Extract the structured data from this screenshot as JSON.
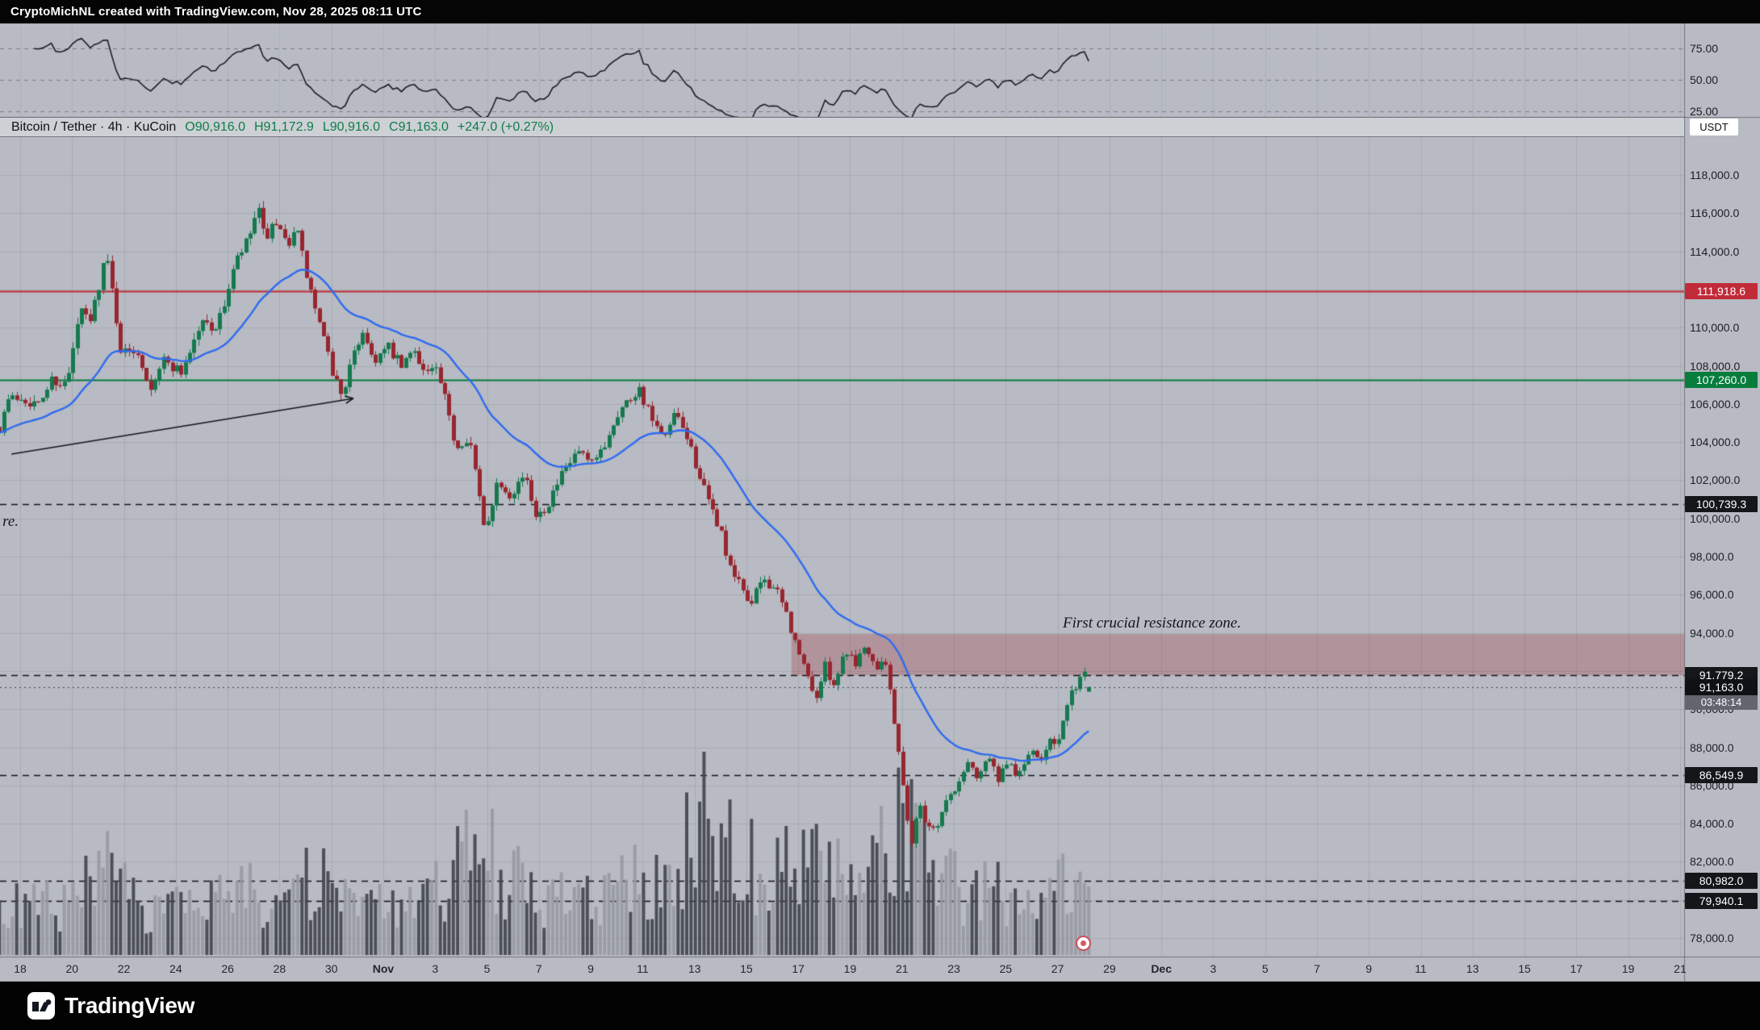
{
  "header": {
    "watermark": "CryptoMichNL created with TradingView.com, Nov 28, 2025 08:11 UTC"
  },
  "symbol_bar": {
    "title": "Bitcoin / Tether · 4h · KuCoin",
    "ohlc": {
      "open": "O90,916.0",
      "high": "H91,172.9",
      "low": "L90,916.0",
      "close": "C91,163.0",
      "change": "+247.0 (+0.27%)"
    }
  },
  "price_scale": {
    "currency_button": "USDT",
    "ticks": [
      {
        "price": 118000,
        "label": "118,000.0"
      },
      {
        "price": 116000,
        "label": "116,000.0"
      },
      {
        "price": 114000,
        "label": "114,000.0"
      },
      {
        "price": 110000,
        "label": "110,000.0"
      },
      {
        "price": 108000,
        "label": "108,000.0"
      },
      {
        "price": 106000,
        "label": "106,000.0"
      },
      {
        "price": 104000,
        "label": "104,000.0"
      },
      {
        "price": 102000,
        "label": "102,000.0"
      },
      {
        "price": 100000,
        "label": "100,000.0"
      },
      {
        "price": 98000,
        "label": "98,000.0"
      },
      {
        "price": 96000,
        "label": "96,000.0"
      },
      {
        "price": 94000,
        "label": "94,000.0"
      },
      {
        "price": 90000,
        "label": "90,000.0"
      },
      {
        "price": 88000,
        "label": "88,000.0"
      },
      {
        "price": 86000,
        "label": "86,000.0"
      },
      {
        "price": 84000,
        "label": "84,000.0"
      },
      {
        "price": 82000,
        "label": "82,000.0"
      },
      {
        "price": 78000,
        "label": "78,000.0"
      }
    ],
    "levels": [
      {
        "name": "red-resistance-line",
        "price": 111918.6,
        "label": "111,918.6",
        "color": "#c12b38",
        "style": "solid"
      },
      {
        "name": "green-support-line",
        "price": 107260.0,
        "label": "107,260.0",
        "color": "#067d3c",
        "style": "solid"
      },
      {
        "name": "dashed-level-1",
        "price": 100739.3,
        "label": "100,739.3",
        "color": "#14161a",
        "style": "dashed"
      },
      {
        "name": "zone-bottom-level",
        "price": 91779.2,
        "label": "91,779.2",
        "color": "#14161a",
        "style": "dashed"
      },
      {
        "name": "dashed-level-2",
        "price": 86549.9,
        "label": "86,549.9",
        "color": "#14161a",
        "style": "dashed"
      },
      {
        "name": "dashed-level-3",
        "price": 80982.0,
        "label": "80,982.0",
        "color": "#14161a",
        "style": "dashed"
      },
      {
        "name": "dashed-level-4",
        "price": 79940.1,
        "label": "79,940.1",
        "color": "#14161a",
        "style": "dashed"
      }
    ],
    "last_price": {
      "value": 91163.0,
      "label": "91,163.0",
      "countdown": "03:48:14"
    }
  },
  "rsi_panel": {
    "ticks": [
      {
        "value": 75,
        "label": "75.00"
      },
      {
        "value": 50,
        "label": "50.00"
      },
      {
        "value": 25,
        "label": "25.00"
      }
    ]
  },
  "x_axis": {
    "labels": [
      {
        "label": "18",
        "day": 0
      },
      {
        "label": "20",
        "day": 2
      },
      {
        "label": "22",
        "day": 4
      },
      {
        "label": "24",
        "day": 6
      },
      {
        "label": "26",
        "day": 8
      },
      {
        "label": "28",
        "day": 10
      },
      {
        "label": "30",
        "day": 12
      },
      {
        "label": "Nov",
        "day": 14,
        "month": true
      },
      {
        "label": "3",
        "day": 16
      },
      {
        "label": "5",
        "day": 18
      },
      {
        "label": "7",
        "day": 20
      },
      {
        "label": "9",
        "day": 22
      },
      {
        "label": "11",
        "day": 24
      },
      {
        "label": "13",
        "day": 26
      },
      {
        "label": "15",
        "day": 28
      },
      {
        "label": "17",
        "day": 30
      },
      {
        "label": "19",
        "day": 32
      },
      {
        "label": "21",
        "day": 34
      },
      {
        "label": "23",
        "day": 36
      },
      {
        "label": "25",
        "day": 38
      },
      {
        "label": "27",
        "day": 40
      },
      {
        "label": "29",
        "day": 42
      },
      {
        "label": "Dec",
        "day": 44,
        "month": true
      },
      {
        "label": "3",
        "day": 46
      },
      {
        "label": "5",
        "day": 48
      },
      {
        "label": "7",
        "day": 50
      },
      {
        "label": "9",
        "day": 52
      },
      {
        "label": "11",
        "day": 54
      },
      {
        "label": "13",
        "day": 56
      },
      {
        "label": "15",
        "day": 58
      },
      {
        "label": "17",
        "day": 60
      },
      {
        "label": "19",
        "day": 62
      },
      {
        "label": "21",
        "day": 64
      }
    ]
  },
  "chart_data": {
    "type": "candlestick",
    "symbol": "Bitcoin / Tether (BTC/USDT)",
    "exchange": "KuCoin",
    "interval": "4h",
    "visible_range": [
      "Oct 18",
      "Dec 21"
    ],
    "last_bar_time": "Nov 28 08:00 UTC",
    "ylim": [
      77000,
      120000
    ],
    "y_grid_step": 2000,
    "last": {
      "open": 90916.0,
      "high": 91172.9,
      "low": 90916.0,
      "close": 91163.0,
      "change": 247.0,
      "change_pct": 0.27
    },
    "price_path": [
      [
        -0.8,
        104800
      ],
      [
        -0.5,
        106200
      ],
      [
        0,
        106400
      ],
      [
        0.7,
        105900
      ],
      [
        1.2,
        107300
      ],
      [
        1.8,
        107000
      ],
      [
        2.3,
        110900
      ],
      [
        2.7,
        110300
      ],
      [
        3.3,
        113900
      ],
      [
        3.6,
        111400
      ],
      [
        3.9,
        108600
      ],
      [
        4.5,
        108900
      ],
      [
        5,
        106900
      ],
      [
        5.5,
        108300
      ],
      [
        6.2,
        107700
      ],
      [
        7,
        110300
      ],
      [
        7.6,
        110000
      ],
      [
        8.3,
        113400
      ],
      [
        8.8,
        114600
      ],
      [
        9.15,
        116300
      ],
      [
        9.4,
        114700
      ],
      [
        9.8,
        115300
      ],
      [
        10.3,
        114300
      ],
      [
        10.6,
        115500
      ],
      [
        11,
        112900
      ],
      [
        11.5,
        110300
      ],
      [
        12,
        107800
      ],
      [
        12.4,
        106500
      ],
      [
        12.8,
        108300
      ],
      [
        13.2,
        109900
      ],
      [
        13.6,
        108300
      ],
      [
        14.2,
        108900
      ],
      [
        14.7,
        107900
      ],
      [
        15.2,
        108900
      ],
      [
        15.6,
        107600
      ],
      [
        16,
        107900
      ],
      [
        16.35,
        106300
      ],
      [
        16.8,
        103700
      ],
      [
        17.3,
        104400
      ],
      [
        17.9,
        99300
      ],
      [
        18.4,
        102000
      ],
      [
        18.9,
        101300
      ],
      [
        19.4,
        102300
      ],
      [
        19.9,
        100200
      ],
      [
        20.3,
        100700
      ],
      [
        20.9,
        102300
      ],
      [
        21.5,
        103500
      ],
      [
        22,
        102700
      ],
      [
        22.5,
        103800
      ],
      [
        23,
        105500
      ],
      [
        23.5,
        106300
      ],
      [
        23.85,
        106850
      ],
      [
        24.3,
        105300
      ],
      [
        24.8,
        103950
      ],
      [
        25.2,
        105400
      ],
      [
        25.7,
        104300
      ],
      [
        26.1,
        102600
      ],
      [
        26.5,
        100900
      ],
      [
        27,
        99400
      ],
      [
        27.35,
        97300
      ],
      [
        27.8,
        96400
      ],
      [
        28.2,
        95500
      ],
      [
        28.6,
        96900
      ],
      [
        29.1,
        96300
      ],
      [
        29.5,
        95100
      ],
      [
        29.9,
        93300
      ],
      [
        30.3,
        91900
      ],
      [
        30.7,
        90600
      ],
      [
        31,
        92300
      ],
      [
        31.4,
        91300
      ],
      [
        31.8,
        93200
      ],
      [
        32.2,
        92500
      ],
      [
        32.6,
        93400
      ],
      [
        33,
        92200
      ],
      [
        33.3,
        92900
      ],
      [
        33.6,
        90400
      ],
      [
        33.9,
        87500
      ],
      [
        34.15,
        84600
      ],
      [
        34.4,
        82900
      ],
      [
        34.65,
        85200
      ],
      [
        34.9,
        84100
      ],
      [
        35.3,
        83700
      ],
      [
        35.7,
        85200
      ],
      [
        36.1,
        85800
      ],
      [
        36.5,
        87300
      ],
      [
        36.9,
        86500
      ],
      [
        37.3,
        87600
      ],
      [
        37.7,
        86300
      ],
      [
        38.1,
        87100
      ],
      [
        38.5,
        86500
      ],
      [
        38.9,
        87800
      ],
      [
        39.3,
        87200
      ],
      [
        39.7,
        88600
      ],
      [
        40,
        88200
      ],
      [
        40.4,
        90300
      ],
      [
        40.8,
        91600
      ],
      [
        41.05,
        91850
      ],
      [
        41.2,
        91000
      ],
      [
        41.3333,
        91163
      ]
    ],
    "volume_anchors": [
      [
        -0.8,
        0.3
      ],
      [
        2,
        0.35
      ],
      [
        3.3,
        0.55
      ],
      [
        4,
        0.4
      ],
      [
        5,
        0.32
      ],
      [
        7,
        0.3
      ],
      [
        9,
        0.45
      ],
      [
        10.5,
        0.42
      ],
      [
        11.5,
        0.5
      ],
      [
        13,
        0.33
      ],
      [
        15,
        0.3
      ],
      [
        16.4,
        0.5
      ],
      [
        17.9,
        0.75
      ],
      [
        19,
        0.5
      ],
      [
        20,
        0.4
      ],
      [
        22,
        0.35
      ],
      [
        23.8,
        0.5
      ],
      [
        25,
        0.45
      ],
      [
        26.2,
        0.9
      ],
      [
        26.6,
        1
      ],
      [
        27.4,
        0.95
      ],
      [
        28.3,
        0.6
      ],
      [
        29,
        0.5
      ],
      [
        30,
        0.75
      ],
      [
        30.8,
        0.6
      ],
      [
        31.8,
        0.5
      ],
      [
        32.6,
        0.45
      ],
      [
        33.7,
        0.8
      ],
      [
        34.4,
        0.95
      ],
      [
        35,
        0.6
      ],
      [
        35.8,
        0.5
      ],
      [
        36.8,
        0.45
      ],
      [
        37.8,
        0.42
      ],
      [
        38.8,
        0.4
      ],
      [
        39.8,
        0.42
      ],
      [
        40.6,
        0.5
      ],
      [
        41.3333,
        0.45
      ]
    ],
    "zone": {
      "label": "First crucial resistance zone.",
      "start_day": 29.74,
      "top": 93930,
      "bottom": 91779.2,
      "fill": "rgba(160,42,54,0.28)",
      "text_anchor": {
        "day": 40.2,
        "price": 94480
      }
    },
    "indicators": {
      "ma": {
        "type": "EMA",
        "period": 30,
        "color": "#2e6bf0"
      },
      "rsi": {
        "period": 14,
        "bands": [
          75,
          50,
          25
        ]
      }
    },
    "annotations": {
      "left_truncated_text": "re.",
      "left_text_anchor": {
        "day": -0.68,
        "price": 99820
      },
      "arrow": {
        "from": {
          "day": -0.34,
          "price": 103370
        },
        "to": {
          "day": 12.85,
          "price": 106290
        }
      },
      "event_marker_day": 41.0
    },
    "colors": {
      "up": "#15794f",
      "down": "#97262f",
      "vol_up": "rgba(151,154,161,0.9)",
      "vol_down": "rgba(64,68,76,0.9)",
      "background": "#b8bbc3",
      "grid": "rgba(25,28,34,0.10)",
      "ma": "#2e6bf0",
      "rsi_line": "#14161a"
    }
  },
  "footer": {
    "logo_text": "TradingView"
  }
}
